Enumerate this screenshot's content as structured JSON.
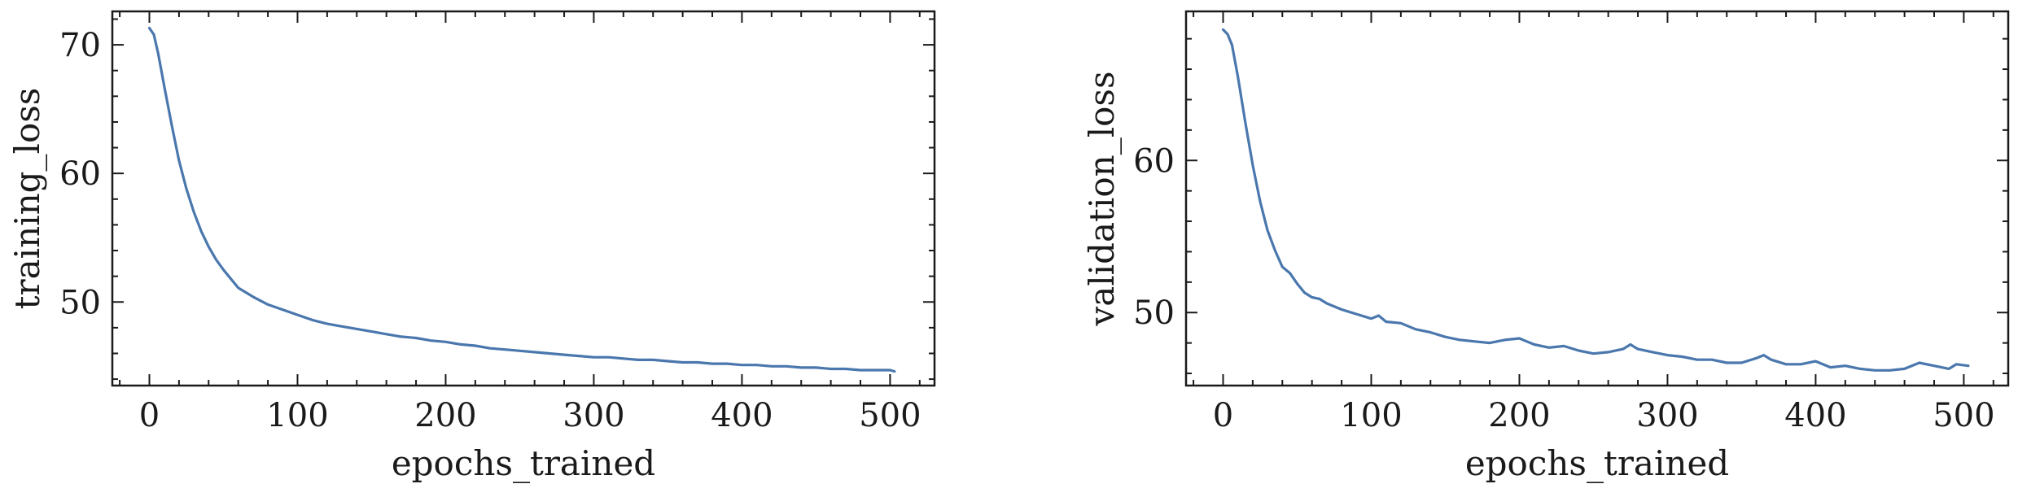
{
  "style": {
    "line_color": "#4a77ad"
  },
  "chart_data": [
    {
      "type": "line",
      "xlabel": "epochs_trained",
      "ylabel": "training_loss",
      "xlim": [
        -25,
        530
      ],
      "ylim": [
        43.5,
        72.6
      ],
      "xticks": [
        0,
        100,
        200,
        300,
        400,
        500
      ],
      "yticks": [
        50,
        60,
        70
      ],
      "x_minor_step": 20,
      "y_minor_step": 2,
      "x": [
        0,
        3,
        6,
        10,
        15,
        20,
        25,
        30,
        35,
        40,
        45,
        50,
        55,
        60,
        70,
        80,
        90,
        100,
        110,
        120,
        130,
        140,
        150,
        160,
        170,
        180,
        190,
        200,
        210,
        220,
        230,
        240,
        250,
        260,
        270,
        280,
        290,
        300,
        310,
        320,
        330,
        340,
        350,
        360,
        370,
        380,
        390,
        400,
        410,
        420,
        430,
        440,
        450,
        460,
        470,
        480,
        490,
        500,
        503
      ],
      "y": [
        71.3,
        70.8,
        69.3,
        66.8,
        63.8,
        61.0,
        58.8,
        57.0,
        55.5,
        54.3,
        53.3,
        52.5,
        51.8,
        51.1,
        50.4,
        49.8,
        49.4,
        49.0,
        48.6,
        48.3,
        48.1,
        47.9,
        47.7,
        47.5,
        47.3,
        47.2,
        47.0,
        46.9,
        46.7,
        46.6,
        46.4,
        46.3,
        46.2,
        46.1,
        46.0,
        45.9,
        45.8,
        45.7,
        45.7,
        45.6,
        45.5,
        45.5,
        45.4,
        45.3,
        45.3,
        45.2,
        45.2,
        45.1,
        45.1,
        45.0,
        45.0,
        44.9,
        44.9,
        44.8,
        44.8,
        44.7,
        44.7,
        44.7,
        44.6
      ]
    },
    {
      "type": "line",
      "xlabel": "epochs_trained",
      "ylabel": "validation_loss",
      "xlim": [
        -25,
        530
      ],
      "ylim": [
        45.2,
        69.8
      ],
      "xticks": [
        0,
        100,
        200,
        300,
        400,
        500
      ],
      "yticks": [
        50,
        60
      ],
      "x_minor_step": 20,
      "y_minor_step": 2,
      "x": [
        0,
        3,
        6,
        10,
        15,
        20,
        25,
        30,
        35,
        40,
        45,
        50,
        55,
        60,
        65,
        70,
        80,
        90,
        100,
        105,
        110,
        120,
        130,
        140,
        150,
        160,
        170,
        180,
        190,
        200,
        205,
        210,
        220,
        230,
        240,
        250,
        260,
        270,
        275,
        280,
        290,
        300,
        310,
        320,
        330,
        340,
        350,
        360,
        365,
        370,
        380,
        390,
        400,
        410,
        420,
        430,
        440,
        450,
        460,
        470,
        480,
        490,
        495,
        503
      ],
      "y": [
        68.6,
        68.3,
        67.6,
        65.5,
        62.5,
        59.7,
        57.3,
        55.4,
        54.1,
        53.0,
        52.6,
        51.9,
        51.3,
        51.0,
        50.9,
        50.6,
        50.2,
        49.9,
        49.6,
        49.8,
        49.4,
        49.3,
        48.9,
        48.7,
        48.4,
        48.2,
        48.1,
        48.0,
        48.2,
        48.3,
        48.1,
        47.9,
        47.7,
        47.8,
        47.5,
        47.3,
        47.4,
        47.6,
        47.9,
        47.6,
        47.4,
        47.2,
        47.1,
        46.9,
        46.9,
        46.7,
        46.7,
        47.0,
        47.2,
        46.9,
        46.6,
        46.6,
        46.8,
        46.4,
        46.5,
        46.3,
        46.2,
        46.2,
        46.3,
        46.7,
        46.5,
        46.3,
        46.6,
        46.5
      ]
    }
  ]
}
